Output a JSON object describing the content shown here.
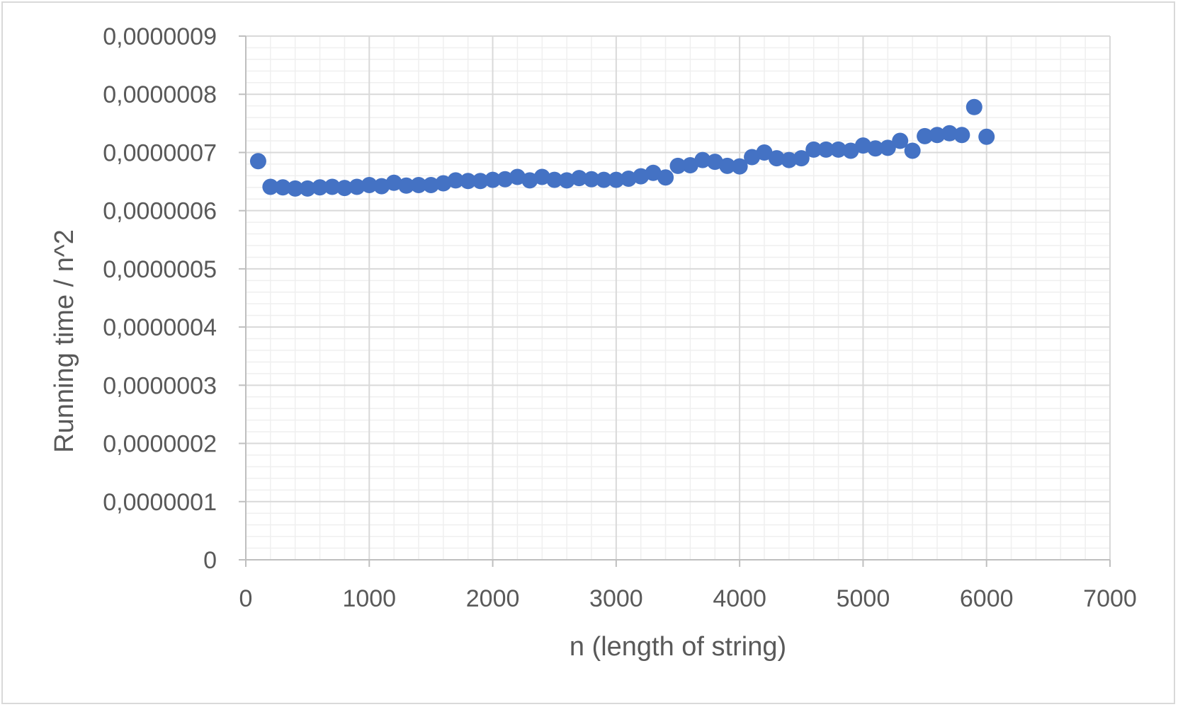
{
  "chart_data": {
    "type": "scatter",
    "title": "",
    "xlabel": "n (length of string)",
    "ylabel": "Running time / n^2",
    "xlim": [
      0,
      7000
    ],
    "ylim": [
      0,
      9e-07
    ],
    "x_ticks": [
      "0",
      "1000",
      "2000",
      "3000",
      "4000",
      "5000",
      "6000",
      "7000"
    ],
    "y_ticks": [
      "0",
      "0,0000001",
      "0,0000002",
      "0,0000003",
      "0,0000004",
      "0,0000005",
      "0,0000006",
      "0,0000007",
      "0,0000008",
      "0,0000009"
    ],
    "grid": true,
    "legend": "none",
    "marker_color": "#4472C4",
    "series": [
      {
        "x": [
          100,
          200,
          300,
          400,
          500,
          600,
          700,
          800,
          900,
          1000,
          1100,
          1200,
          1300,
          1400,
          1500,
          1600,
          1700,
          1800,
          1900,
          2000,
          2100,
          2200,
          2300,
          2400,
          2500,
          2600,
          2700,
          2800,
          2900,
          3000,
          3100,
          3200,
          3300,
          3400,
          3500,
          3600,
          3700,
          3800,
          3900,
          4000,
          4100,
          4200,
          4300,
          4400,
          4500,
          4600,
          4700,
          4800,
          4900,
          5000,
          5100,
          5200,
          5300,
          5400,
          5500,
          5600,
          5700,
          5800,
          5900,
          6000
        ],
        "y": [
          6.85e-07,
          6.41e-07,
          6.4e-07,
          6.38e-07,
          6.38e-07,
          6.4e-07,
          6.41e-07,
          6.39e-07,
          6.41e-07,
          6.44e-07,
          6.42e-07,
          6.48e-07,
          6.43e-07,
          6.44e-07,
          6.44e-07,
          6.47e-07,
          6.52e-07,
          6.51e-07,
          6.51e-07,
          6.53e-07,
          6.54e-07,
          6.58e-07,
          6.52e-07,
          6.58e-07,
          6.53e-07,
          6.52e-07,
          6.56e-07,
          6.54e-07,
          6.53e-07,
          6.53e-07,
          6.55e-07,
          6.59e-07,
          6.65e-07,
          6.57e-07,
          6.77e-07,
          6.78e-07,
          6.87e-07,
          6.84e-07,
          6.77e-07,
          6.76e-07,
          6.92e-07,
          7e-07,
          6.9e-07,
          6.87e-07,
          6.9e-07,
          7.05e-07,
          7.05e-07,
          7.05e-07,
          7.03e-07,
          7.12e-07,
          7.07e-07,
          7.08e-07,
          7.2e-07,
          7.03e-07,
          7.28e-07,
          7.3e-07,
          7.33e-07,
          7.3e-07,
          7.78e-07,
          7.27e-07
        ]
      }
    ]
  }
}
